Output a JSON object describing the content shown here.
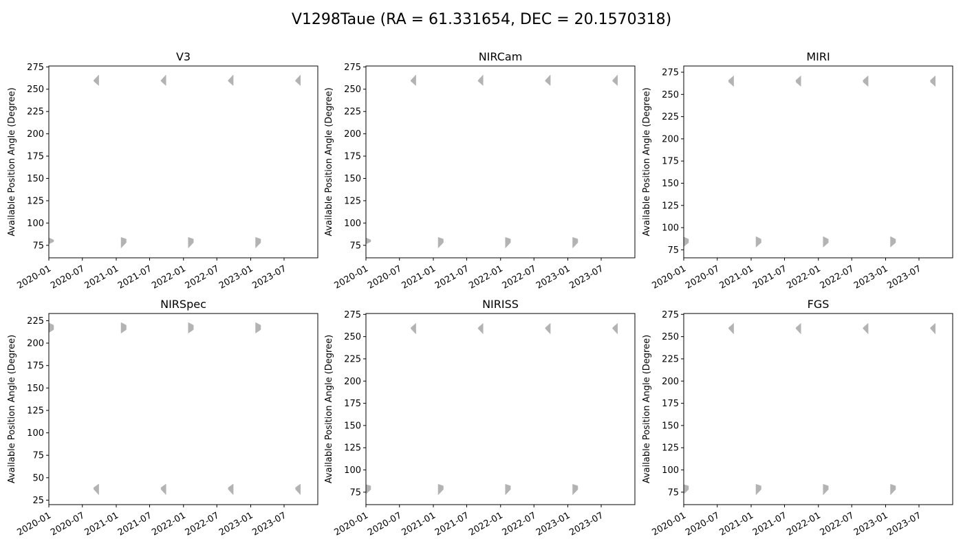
{
  "figure": {
    "title": "V1298Taue (RA = 61.331654, DEC = 20.1570318)"
  },
  "colors": {
    "window_fill": "#b3b3b3",
    "axes": "#000000",
    "background": "#ffffff"
  },
  "chart_data": [
    {
      "type": "area",
      "title": "V3",
      "xlabel": "",
      "ylabel": "Available Position Angle (Degree)",
      "x_ticks": [
        "2020-01",
        "2020-07",
        "2021-01",
        "2021-07",
        "2022-01",
        "2022-07",
        "2023-01",
        "2023-07"
      ],
      "xlim": [
        "2020-01-01",
        "2023-12-31"
      ],
      "ylim": [
        61,
        276
      ],
      "y_ticks": [
        75,
        100,
        125,
        150,
        175,
        200,
        225,
        250,
        275
      ],
      "grid": false,
      "windows": [
        {
          "start": "2019-12-27",
          "end": "2020-01-27",
          "pa_start": [
            76,
            84
          ],
          "pa_end": [
            79,
            81
          ],
          "shape": "fan-left"
        },
        {
          "start": "2020-09-01",
          "end": "2020-09-28",
          "pa_start": [
            259,
            260
          ],
          "pa_end": [
            254,
            266
          ],
          "shape": "fan-right"
        },
        {
          "start": "2021-01-27",
          "end": "2021-02-24",
          "pa_start": [
            72,
            84
          ],
          "pa_end": [
            78,
            82
          ],
          "shape": "fan-left"
        },
        {
          "start": "2021-09-01",
          "end": "2021-09-28",
          "pa_start": [
            259,
            260
          ],
          "pa_end": [
            254,
            266
          ],
          "shape": "fan-right"
        },
        {
          "start": "2022-01-27",
          "end": "2022-02-24",
          "pa_start": [
            72,
            84
          ],
          "pa_end": [
            78,
            82
          ],
          "shape": "fan-left"
        },
        {
          "start": "2022-09-01",
          "end": "2022-09-28",
          "pa_start": [
            259,
            260
          ],
          "pa_end": [
            254,
            266
          ],
          "shape": "fan-right"
        },
        {
          "start": "2023-01-27",
          "end": "2023-02-24",
          "pa_start": [
            72,
            84
          ],
          "pa_end": [
            78,
            82
          ],
          "shape": "fan-left"
        },
        {
          "start": "2023-09-01",
          "end": "2023-09-28",
          "pa_start": [
            259,
            260
          ],
          "pa_end": [
            254,
            266
          ],
          "shape": "fan-right"
        }
      ]
    },
    {
      "type": "area",
      "title": "NIRCam",
      "xlabel": "",
      "ylabel": "Available Position Angle (Degree)",
      "x_ticks": [
        "2020-01",
        "2020-07",
        "2021-01",
        "2021-07",
        "2022-01",
        "2022-07",
        "2023-01",
        "2023-07"
      ],
      "xlim": [
        "2020-01-01",
        "2023-12-31"
      ],
      "ylim": [
        61,
        276
      ],
      "y_ticks": [
        75,
        100,
        125,
        150,
        175,
        200,
        225,
        250,
        275
      ],
      "grid": false,
      "windows": [
        {
          "start": "2019-12-27",
          "end": "2020-01-27",
          "pa_start": [
            76,
            84
          ],
          "pa_end": [
            79,
            81
          ],
          "shape": "fan-left"
        },
        {
          "start": "2020-09-01",
          "end": "2020-09-28",
          "pa_start": [
            259,
            260
          ],
          "pa_end": [
            254,
            266
          ],
          "shape": "fan-right"
        },
        {
          "start": "2021-01-27",
          "end": "2021-02-24",
          "pa_start": [
            72,
            84
          ],
          "pa_end": [
            78,
            82
          ],
          "shape": "fan-left"
        },
        {
          "start": "2021-09-01",
          "end": "2021-09-28",
          "pa_start": [
            259,
            260
          ],
          "pa_end": [
            254,
            266
          ],
          "shape": "fan-right"
        },
        {
          "start": "2022-01-27",
          "end": "2022-02-24",
          "pa_start": [
            72,
            84
          ],
          "pa_end": [
            78,
            82
          ],
          "shape": "fan-left"
        },
        {
          "start": "2022-09-01",
          "end": "2022-09-28",
          "pa_start": [
            259,
            260
          ],
          "pa_end": [
            254,
            266
          ],
          "shape": "fan-right"
        },
        {
          "start": "2023-01-27",
          "end": "2023-02-24",
          "pa_start": [
            72,
            84
          ],
          "pa_end": [
            78,
            82
          ],
          "shape": "fan-left"
        },
        {
          "start": "2023-09-01",
          "end": "2023-09-28",
          "pa_start": [
            259,
            260
          ],
          "pa_end": [
            254,
            266
          ],
          "shape": "fan-right"
        }
      ]
    },
    {
      "type": "area",
      "title": "MIRI",
      "xlabel": "",
      "ylabel": "Available Position Angle (Degree)",
      "x_ticks": [
        "2020-01",
        "2020-07",
        "2021-01",
        "2021-07",
        "2022-01",
        "2022-07",
        "2023-01",
        "2023-07"
      ],
      "xlim": [
        "2020-01-01",
        "2023-12-31"
      ],
      "ylim": [
        66,
        282
      ],
      "y_ticks": [
        75,
        100,
        125,
        150,
        175,
        200,
        225,
        250,
        275
      ],
      "grid": false,
      "windows": [
        {
          "start": "2019-12-27",
          "end": "2020-01-27",
          "pa_start": [
            78,
            90
          ],
          "pa_end": [
            83,
            87
          ],
          "shape": "fan-left"
        },
        {
          "start": "2020-09-01",
          "end": "2020-09-28",
          "pa_start": [
            264,
            266
          ],
          "pa_end": [
            259,
            271
          ],
          "shape": "fan-right"
        },
        {
          "start": "2021-01-27",
          "end": "2021-02-24",
          "pa_start": [
            78,
            90
          ],
          "pa_end": [
            83,
            87
          ],
          "shape": "fan-left"
        },
        {
          "start": "2021-09-01",
          "end": "2021-09-28",
          "pa_start": [
            264,
            266
          ],
          "pa_end": [
            259,
            271
          ],
          "shape": "fan-right"
        },
        {
          "start": "2022-01-27",
          "end": "2022-02-24",
          "pa_start": [
            78,
            90
          ],
          "pa_end": [
            83,
            87
          ],
          "shape": "fan-left"
        },
        {
          "start": "2022-09-01",
          "end": "2022-09-28",
          "pa_start": [
            264,
            266
          ],
          "pa_end": [
            259,
            271
          ],
          "shape": "fan-right"
        },
        {
          "start": "2023-01-27",
          "end": "2023-02-24",
          "pa_start": [
            78,
            90
          ],
          "pa_end": [
            83,
            87
          ],
          "shape": "fan-left"
        },
        {
          "start": "2023-09-01",
          "end": "2023-09-28",
          "pa_start": [
            264,
            266
          ],
          "pa_end": [
            259,
            271
          ],
          "shape": "fan-right"
        }
      ]
    },
    {
      "type": "area",
      "title": "NIRSpec",
      "xlabel": "",
      "ylabel": "Available Position Angle (Degree)",
      "x_ticks": [
        "2020-01",
        "2020-07",
        "2021-01",
        "2021-07",
        "2022-01",
        "2022-07",
        "2023-01",
        "2023-07"
      ],
      "xlim": [
        "2020-01-01",
        "2023-12-31"
      ],
      "ylim": [
        20,
        233
      ],
      "y_ticks": [
        25,
        50,
        75,
        100,
        125,
        150,
        175,
        200,
        225
      ],
      "grid": false,
      "windows": [
        {
          "start": "2019-12-27",
          "end": "2020-01-27",
          "pa_start": [
            211,
            223
          ],
          "pa_end": [
            215,
            220
          ],
          "shape": "fan-left"
        },
        {
          "start": "2020-09-01",
          "end": "2020-09-28",
          "pa_start": [
            37,
            39
          ],
          "pa_end": [
            31,
            43
          ],
          "shape": "fan-right"
        },
        {
          "start": "2021-01-27",
          "end": "2021-02-24",
          "pa_start": [
            211,
            223
          ],
          "pa_end": [
            215,
            220
          ],
          "shape": "fan-left"
        },
        {
          "start": "2021-09-01",
          "end": "2021-09-28",
          "pa_start": [
            37,
            39
          ],
          "pa_end": [
            31,
            43
          ],
          "shape": "fan-right"
        },
        {
          "start": "2022-01-27",
          "end": "2022-02-24",
          "pa_start": [
            211,
            223
          ],
          "pa_end": [
            215,
            220
          ],
          "shape": "fan-left"
        },
        {
          "start": "2022-09-01",
          "end": "2022-09-28",
          "pa_start": [
            37,
            39
          ],
          "pa_end": [
            31,
            43
          ],
          "shape": "fan-right"
        },
        {
          "start": "2023-01-27",
          "end": "2023-02-24",
          "pa_start": [
            211,
            223
          ],
          "pa_end": [
            215,
            220
          ],
          "shape": "fan-left"
        },
        {
          "start": "2023-09-01",
          "end": "2023-09-28",
          "pa_start": [
            37,
            39
          ],
          "pa_end": [
            31,
            43
          ],
          "shape": "fan-right"
        }
      ]
    },
    {
      "type": "area",
      "title": "NIRISS",
      "xlabel": "",
      "ylabel": "Available Position Angle (Degree)",
      "x_ticks": [
        "2020-01",
        "2020-07",
        "2021-01",
        "2021-07",
        "2022-01",
        "2022-07",
        "2023-01",
        "2023-07"
      ],
      "xlim": [
        "2020-01-01",
        "2023-12-31"
      ],
      "ylim": [
        61,
        276
      ],
      "y_ticks": [
        75,
        100,
        125,
        150,
        175,
        200,
        225,
        250,
        275
      ],
      "grid": false,
      "windows": [
        {
          "start": "2019-12-27",
          "end": "2020-01-27",
          "pa_start": [
            72,
            84
          ],
          "pa_end": [
            78,
            82
          ],
          "shape": "fan-left"
        },
        {
          "start": "2020-09-01",
          "end": "2020-09-28",
          "pa_start": [
            259,
            260
          ],
          "pa_end": [
            253,
            265
          ],
          "shape": "fan-right"
        },
        {
          "start": "2021-01-27",
          "end": "2021-02-24",
          "pa_start": [
            72,
            84
          ],
          "pa_end": [
            78,
            82
          ],
          "shape": "fan-left"
        },
        {
          "start": "2021-09-01",
          "end": "2021-09-28",
          "pa_start": [
            259,
            260
          ],
          "pa_end": [
            253,
            265
          ],
          "shape": "fan-right"
        },
        {
          "start": "2022-01-27",
          "end": "2022-02-24",
          "pa_start": [
            72,
            84
          ],
          "pa_end": [
            78,
            82
          ],
          "shape": "fan-left"
        },
        {
          "start": "2022-09-01",
          "end": "2022-09-28",
          "pa_start": [
            259,
            260
          ],
          "pa_end": [
            253,
            265
          ],
          "shape": "fan-right"
        },
        {
          "start": "2023-01-27",
          "end": "2023-02-24",
          "pa_start": [
            72,
            84
          ],
          "pa_end": [
            78,
            82
          ],
          "shape": "fan-left"
        },
        {
          "start": "2023-09-01",
          "end": "2023-09-28",
          "pa_start": [
            259,
            260
          ],
          "pa_end": [
            253,
            265
          ],
          "shape": "fan-right"
        }
      ]
    },
    {
      "type": "area",
      "title": "FGS",
      "xlabel": "",
      "ylabel": "Available Position Angle (Degree)",
      "x_ticks": [
        "2020-01",
        "2020-07",
        "2021-01",
        "2021-07",
        "2022-01",
        "2022-07",
        "2023-01",
        "2023-07"
      ],
      "xlim": [
        "2020-01-01",
        "2023-12-31"
      ],
      "ylim": [
        61,
        276
      ],
      "y_ticks": [
        75,
        100,
        125,
        150,
        175,
        200,
        225,
        250,
        275
      ],
      "grid": false,
      "windows": [
        {
          "start": "2019-12-27",
          "end": "2020-01-27",
          "pa_start": [
            72,
            84
          ],
          "pa_end": [
            78,
            82
          ],
          "shape": "fan-left"
        },
        {
          "start": "2020-09-01",
          "end": "2020-09-28",
          "pa_start": [
            259,
            260
          ],
          "pa_end": [
            253,
            265
          ],
          "shape": "fan-right"
        },
        {
          "start": "2021-01-27",
          "end": "2021-02-24",
          "pa_start": [
            72,
            84
          ],
          "pa_end": [
            78,
            82
          ],
          "shape": "fan-left"
        },
        {
          "start": "2021-09-01",
          "end": "2021-09-28",
          "pa_start": [
            259,
            260
          ],
          "pa_end": [
            253,
            265
          ],
          "shape": "fan-right"
        },
        {
          "start": "2022-01-27",
          "end": "2022-02-24",
          "pa_start": [
            72,
            84
          ],
          "pa_end": [
            78,
            82
          ],
          "shape": "fan-left"
        },
        {
          "start": "2022-09-01",
          "end": "2022-09-28",
          "pa_start": [
            259,
            260
          ],
          "pa_end": [
            253,
            265
          ],
          "shape": "fan-right"
        },
        {
          "start": "2023-01-27",
          "end": "2023-02-24",
          "pa_start": [
            72,
            84
          ],
          "pa_end": [
            78,
            82
          ],
          "shape": "fan-left"
        },
        {
          "start": "2023-09-01",
          "end": "2023-09-28",
          "pa_start": [
            259,
            260
          ],
          "pa_end": [
            253,
            265
          ],
          "shape": "fan-right"
        }
      ]
    }
  ]
}
